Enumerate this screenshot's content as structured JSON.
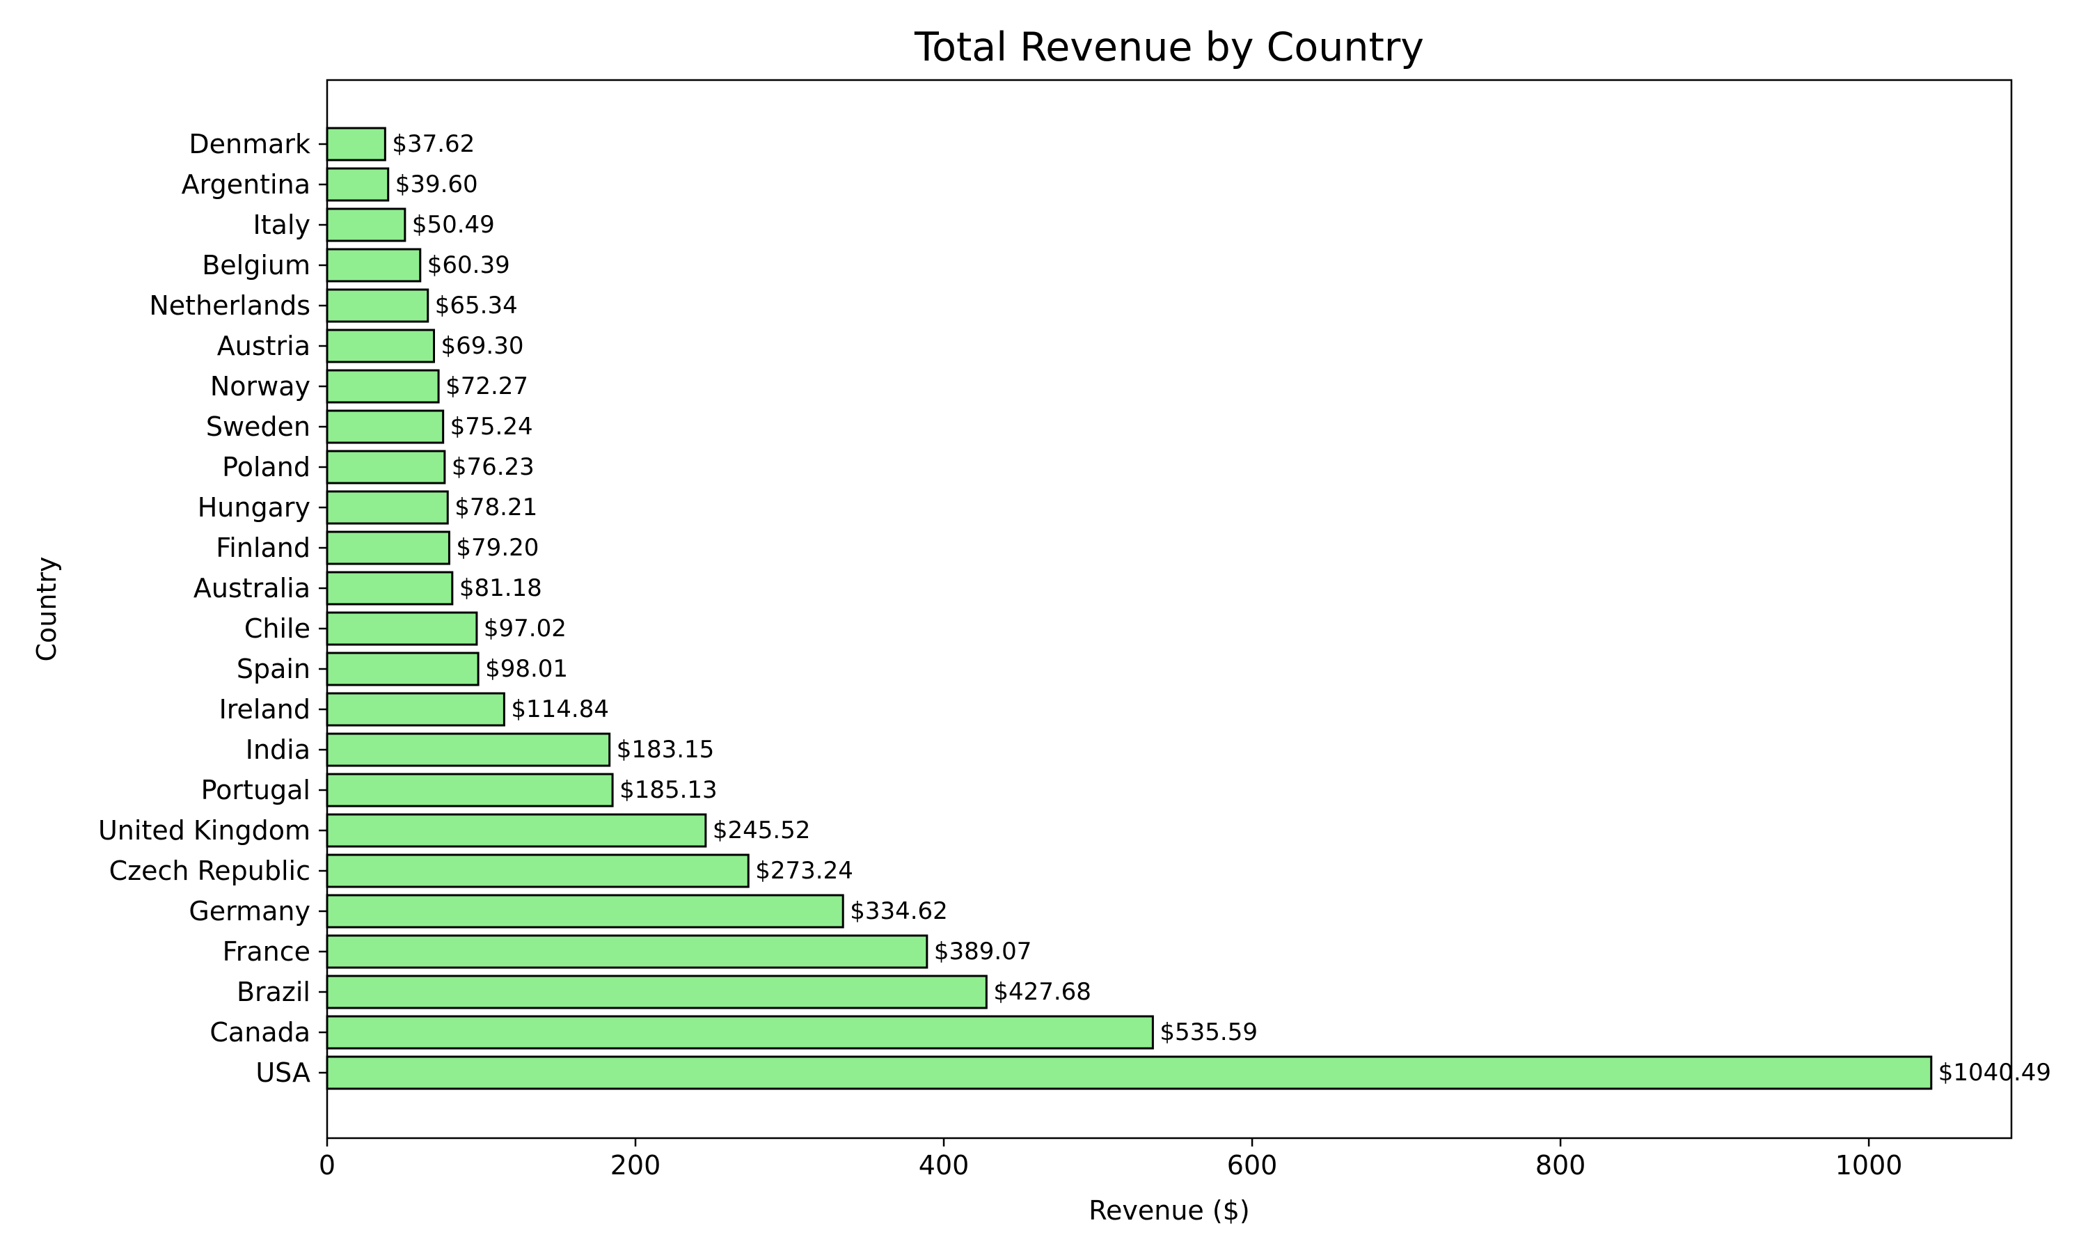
{
  "chart_data": {
    "type": "bar",
    "orientation": "horizontal",
    "title": "Total Revenue by Country",
    "xlabel": "Revenue ($)",
    "ylabel": "Country",
    "xlim": [
      0,
      1092.5
    ],
    "xticks": [
      0,
      200,
      400,
      600,
      800,
      1000
    ],
    "grid": false,
    "bar_color": "#90ee90",
    "bar_edge_color": "#000000",
    "value_label_prefix": "$",
    "categories": [
      "USA",
      "Canada",
      "Brazil",
      "France",
      "Germany",
      "Czech Republic",
      "United Kingdom",
      "Portugal",
      "India",
      "Ireland",
      "Spain",
      "Chile",
      "Australia",
      "Finland",
      "Hungary",
      "Poland",
      "Sweden",
      "Norway",
      "Austria",
      "Netherlands",
      "Belgium",
      "Italy",
      "Argentina",
      "Denmark"
    ],
    "values": [
      1040.49,
      535.59,
      427.68,
      389.07,
      334.62,
      273.24,
      245.52,
      185.13,
      183.15,
      114.84,
      98.01,
      97.02,
      81.18,
      79.2,
      78.21,
      76.23,
      75.24,
      72.27,
      69.3,
      65.34,
      60.39,
      50.49,
      39.6,
      37.62
    ],
    "value_labels": [
      "$1040.49",
      "$535.59",
      "$427.68",
      "$389.07",
      "$334.62",
      "$273.24",
      "$245.52",
      "$185.13",
      "$183.15",
      "$114.84",
      "$98.01",
      "$97.02",
      "$81.18",
      "$79.20",
      "$78.21",
      "$76.23",
      "$75.24",
      "$72.27",
      "$69.30",
      "$65.34",
      "$60.39",
      "$50.49",
      "$39.60",
      "$37.62"
    ]
  }
}
